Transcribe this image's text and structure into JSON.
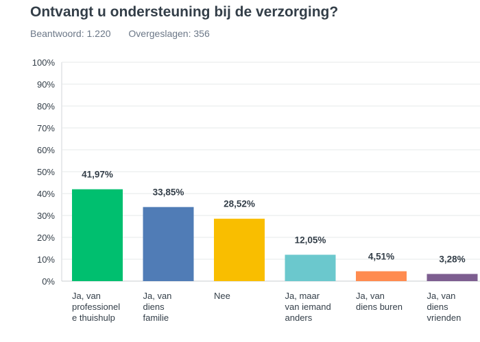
{
  "question": {
    "title": "Ontvangt u ondersteuning bij de verzorging?",
    "answered": "Beantwoord: 1.220",
    "skipped": "Overgeslagen: 356"
  },
  "chart_data": {
    "type": "bar",
    "title": "Ontvangt u ondersteuning bij de verzorging?",
    "xlabel": "",
    "ylabel": "",
    "ylim": [
      0,
      100
    ],
    "grid": true,
    "y_ticks": [
      "0%",
      "10%",
      "20%",
      "30%",
      "40%",
      "50%",
      "60%",
      "70%",
      "80%",
      "90%",
      "100%"
    ],
    "categories": [
      [
        "Ja, van",
        "professionel",
        "e thuishulp"
      ],
      [
        "Ja, van",
        "diens",
        "familie"
      ],
      [
        "Nee"
      ],
      [
        "Ja, maar",
        "van iemand",
        "anders"
      ],
      [
        "Ja, van",
        "diens buren"
      ],
      [
        "Ja, van",
        "diens",
        "vrienden"
      ]
    ],
    "values": [
      41.97,
      33.85,
      28.52,
      12.05,
      4.51,
      3.28
    ],
    "value_labels": [
      "41,97%",
      "33,85%",
      "28,52%",
      "12,05%",
      "4,51%",
      "3,28%"
    ],
    "colors": [
      "#00bf6f",
      "#507cb6",
      "#f9be00",
      "#6bc8cd",
      "#ff8b4f",
      "#7d5e90"
    ]
  }
}
